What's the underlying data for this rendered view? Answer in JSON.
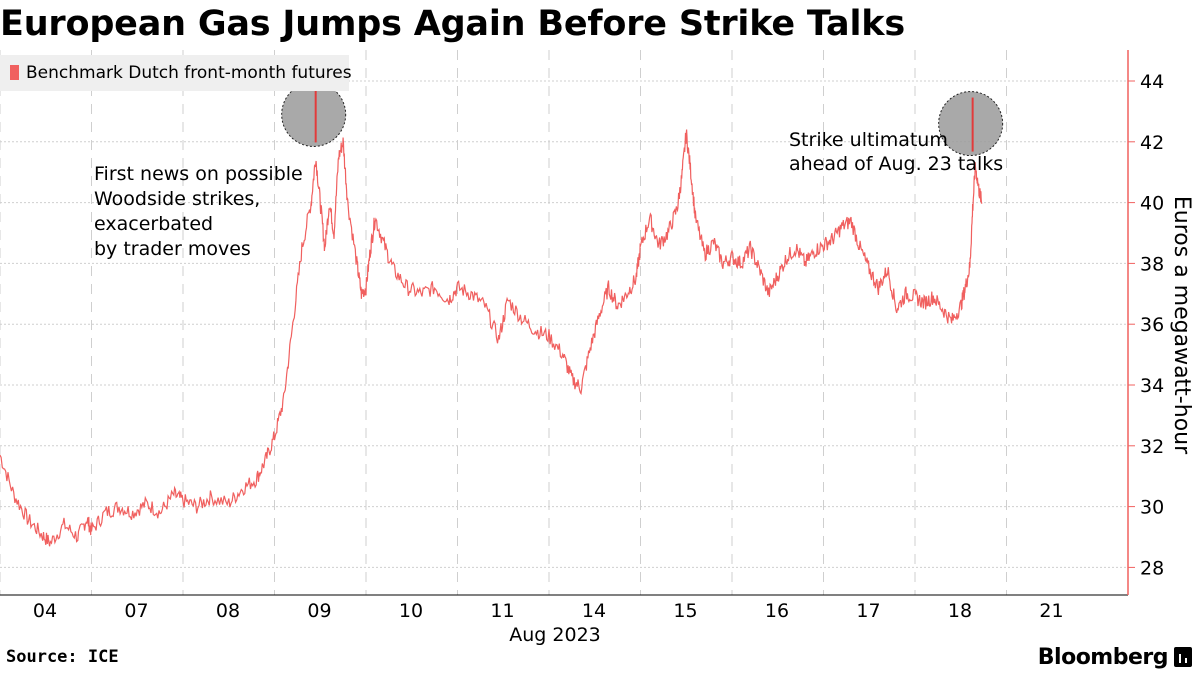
{
  "header": {
    "title": "European Gas Jumps Again Before Strike Talks"
  },
  "legend": {
    "label": "Benchmark Dutch front-month futures",
    "color": "#f0605f"
  },
  "footer": {
    "source": "Source: ICE",
    "brand": "Bloomberg"
  },
  "chart_data": {
    "type": "line",
    "title": "European Gas Jumps Again Before Strike Talks",
    "ylabel": "Euros a megawatt-hour",
    "xlabel": "Aug 2023",
    "ylim": [
      27,
      45
    ],
    "yticks": [
      28,
      30,
      32,
      34,
      36,
      38,
      40,
      42,
      44
    ],
    "x_categories": [
      "04",
      "07",
      "08",
      "09",
      "10",
      "11",
      "14",
      "15",
      "16",
      "17",
      "18",
      "21"
    ],
    "grid": true,
    "legend_placement": "top-left",
    "series": [
      {
        "name": "Benchmark Dutch front-month futures",
        "color": "#f0605f",
        "points": [
          [
            0.0,
            31.7
          ],
          [
            0.15,
            30.4
          ],
          [
            0.3,
            29.6
          ],
          [
            0.45,
            29.1
          ],
          [
            0.55,
            28.8
          ],
          [
            0.7,
            29.4
          ],
          [
            0.85,
            29.0
          ],
          [
            0.95,
            29.6
          ],
          [
            1.0,
            29.2
          ],
          [
            1.15,
            29.8
          ],
          [
            1.3,
            30.0
          ],
          [
            1.45,
            29.8
          ],
          [
            1.6,
            30.1
          ],
          [
            1.75,
            29.8
          ],
          [
            1.9,
            30.4
          ],
          [
            2.0,
            30.2
          ],
          [
            2.15,
            30.0
          ],
          [
            2.3,
            30.3
          ],
          [
            2.5,
            30.1
          ],
          [
            2.65,
            30.6
          ],
          [
            2.8,
            30.9
          ],
          [
            2.9,
            31.5
          ],
          [
            3.0,
            32.3
          ],
          [
            3.1,
            33.5
          ],
          [
            3.2,
            36.0
          ],
          [
            3.3,
            38.5
          ],
          [
            3.4,
            40.0
          ],
          [
            3.45,
            41.5
          ],
          [
            3.5,
            40.0
          ],
          [
            3.55,
            38.5
          ],
          [
            3.6,
            40.0
          ],
          [
            3.65,
            39.0
          ],
          [
            3.7,
            41.5
          ],
          [
            3.75,
            42.0
          ],
          [
            3.8,
            40.0
          ],
          [
            3.9,
            38.0
          ],
          [
            3.95,
            37.0
          ],
          [
            4.0,
            37.2
          ],
          [
            4.05,
            38.5
          ],
          [
            4.1,
            39.5
          ],
          [
            4.2,
            38.6
          ],
          [
            4.3,
            37.8
          ],
          [
            4.45,
            37.2
          ],
          [
            4.6,
            37.0
          ],
          [
            4.75,
            37.2
          ],
          [
            4.9,
            36.8
          ],
          [
            5.0,
            37.2
          ],
          [
            5.15,
            37.0
          ],
          [
            5.3,
            36.6
          ],
          [
            5.45,
            35.5
          ],
          [
            5.55,
            36.8
          ],
          [
            5.7,
            36.2
          ],
          [
            5.85,
            35.8
          ],
          [
            6.0,
            35.6
          ],
          [
            6.15,
            35.0
          ],
          [
            6.25,
            34.2
          ],
          [
            6.35,
            33.9
          ],
          [
            6.45,
            35.2
          ],
          [
            6.55,
            36.3
          ],
          [
            6.65,
            37.2
          ],
          [
            6.75,
            36.6
          ],
          [
            6.85,
            37.0
          ],
          [
            6.95,
            37.5
          ],
          [
            7.0,
            38.5
          ],
          [
            7.1,
            39.5
          ],
          [
            7.2,
            38.6
          ],
          [
            7.3,
            39.0
          ],
          [
            7.4,
            39.8
          ],
          [
            7.45,
            40.8
          ],
          [
            7.5,
            42.3
          ],
          [
            7.55,
            41.0
          ],
          [
            7.6,
            39.5
          ],
          [
            7.7,
            38.3
          ],
          [
            7.8,
            38.7
          ],
          [
            7.9,
            38.0
          ],
          [
            8.0,
            38.2
          ],
          [
            8.1,
            38.0
          ],
          [
            8.2,
            38.5
          ],
          [
            8.3,
            37.8
          ],
          [
            8.4,
            37.0
          ],
          [
            8.5,
            37.6
          ],
          [
            8.6,
            38.2
          ],
          [
            8.7,
            38.5
          ],
          [
            8.8,
            38.0
          ],
          [
            8.9,
            38.4
          ],
          [
            9.0,
            38.6
          ],
          [
            9.1,
            38.8
          ],
          [
            9.2,
            39.2
          ],
          [
            9.3,
            39.4
          ],
          [
            9.4,
            38.5
          ],
          [
            9.5,
            37.8
          ],
          [
            9.6,
            37.2
          ],
          [
            9.7,
            37.8
          ],
          [
            9.8,
            36.5
          ],
          [
            9.9,
            37.0
          ],
          [
            10.0,
            36.9
          ],
          [
            10.1,
            36.7
          ],
          [
            10.2,
            36.9
          ],
          [
            10.3,
            36.5
          ],
          [
            10.4,
            36.1
          ],
          [
            10.5,
            36.6
          ],
          [
            10.55,
            37.2
          ],
          [
            10.6,
            37.9
          ],
          [
            10.63,
            39.8
          ],
          [
            10.66,
            41.2
          ],
          [
            10.7,
            40.4
          ],
          [
            10.73,
            40.0
          ]
        ]
      }
    ],
    "annotations": [
      {
        "text_lines": [
          "First news on possible",
          "Woodside strikes,",
          "exacerbated",
          "by trader moves"
        ],
        "anchor_x": 3.45,
        "anchor_y": 42.9
      },
      {
        "text_lines": [
          "Strike ultimatum",
          "ahead of Aug. 23 talks"
        ],
        "anchor_x": 10.63,
        "anchor_y": 42.6
      }
    ]
  }
}
